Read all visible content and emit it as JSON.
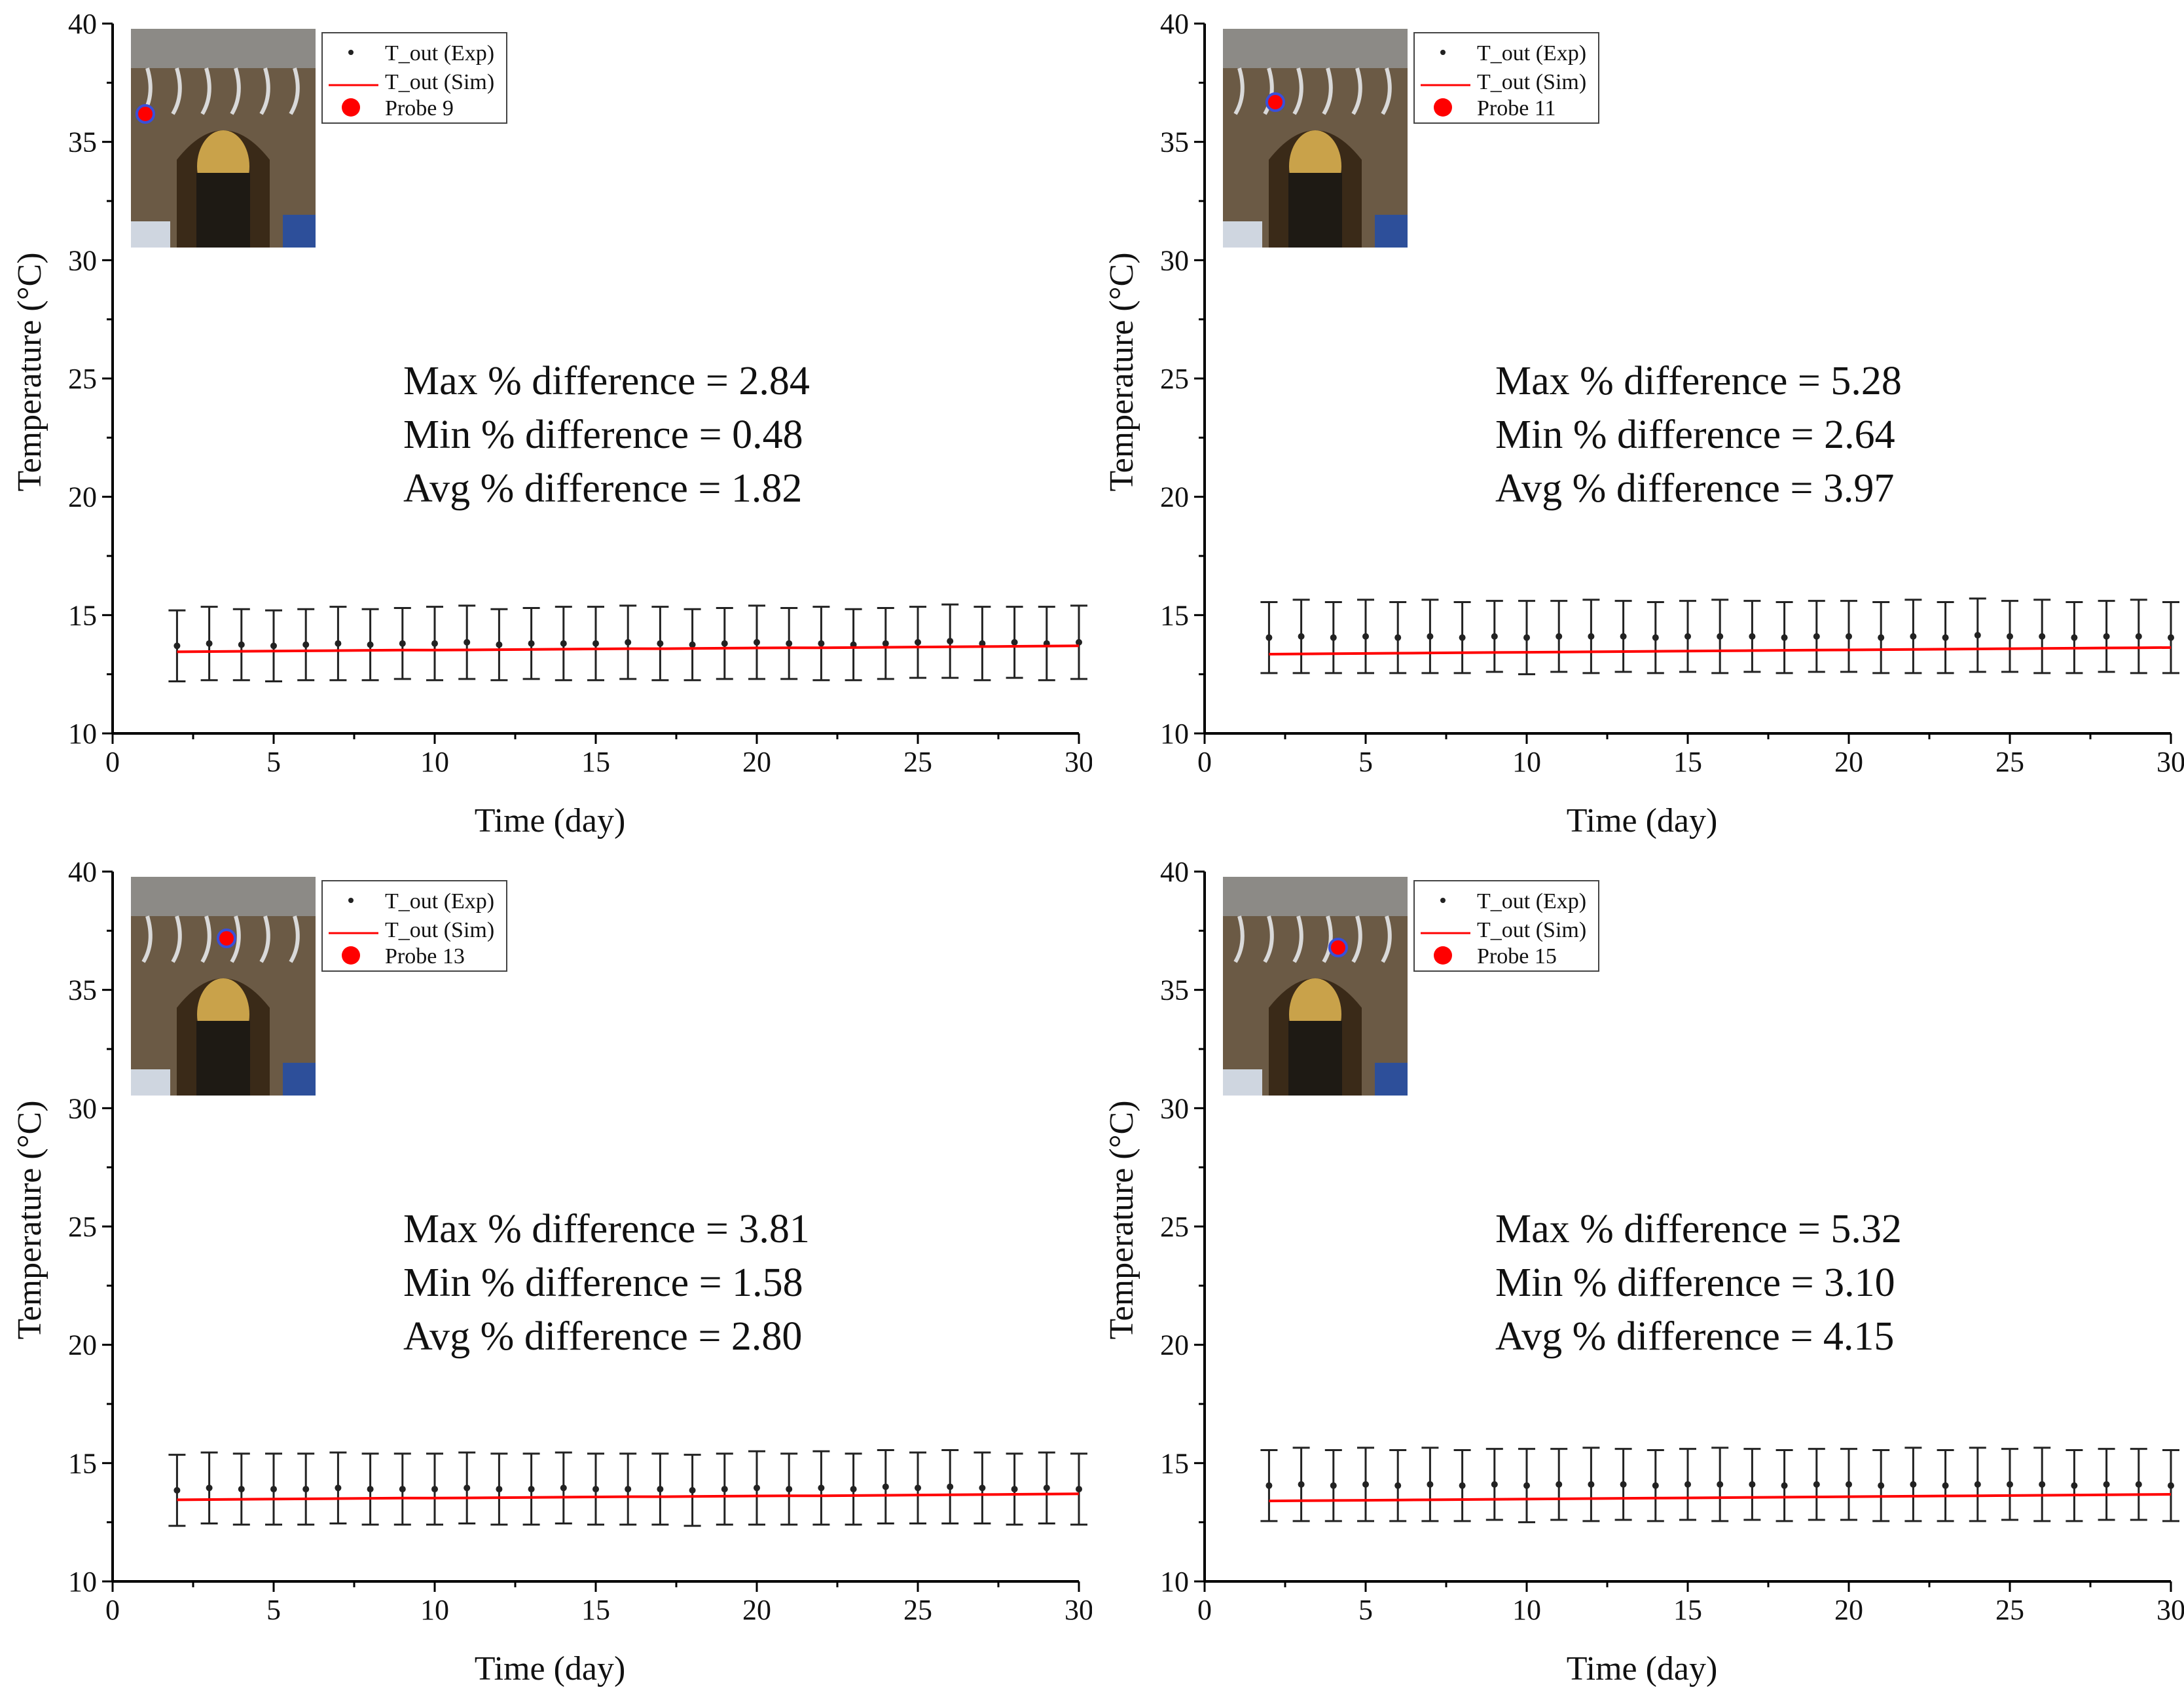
{
  "colors": {
    "exp": "#222222",
    "sim": "#ff0000",
    "axis": "#000000",
    "probe": "#ff0000",
    "probe_ring": "#3a4fd8"
  },
  "shared": {
    "xlabel": "Time (day)",
    "ylabel": "Temperature (°C)",
    "xlim": [
      0,
      30
    ],
    "ylim": [
      10,
      40
    ],
    "xticks": [
      "0",
      "5",
      "10",
      "15",
      "20",
      "25",
      "30"
    ],
    "yticks": [
      "10",
      "15",
      "20",
      "25",
      "30",
      "35",
      "40"
    ],
    "legend": {
      "exp": "T_out (Exp)",
      "sim": "T_out (Sim)"
    },
    "inset": "tunnel-photo"
  },
  "chart_data": [
    {
      "type": "line",
      "xlabel": "Time (day)",
      "ylabel": "Temperature (°C)",
      "xlim": [
        0,
        30
      ],
      "ylim": [
        10,
        40
      ],
      "grid": false,
      "legend_position": "top-left",
      "probe_label": "Probe 9",
      "stats": [
        "Max % difference = 2.84",
        "Min % difference = 0.48",
        "Avg % difference = 1.82"
      ],
      "x": [
        2,
        3,
        4,
        5,
        6,
        7,
        8,
        9,
        10,
        11,
        12,
        13,
        14,
        15,
        16,
        17,
        18,
        19,
        20,
        21,
        22,
        23,
        24,
        25,
        26,
        27,
        28,
        29,
        30
      ],
      "series": [
        {
          "name": "T_out (Exp)",
          "style": "points-with-errorbars",
          "values": [
            13.7,
            13.8,
            13.75,
            13.7,
            13.75,
            13.8,
            13.75,
            13.8,
            13.8,
            13.85,
            13.75,
            13.8,
            13.8,
            13.8,
            13.85,
            13.8,
            13.75,
            13.8,
            13.85,
            13.8,
            13.8,
            13.75,
            13.8,
            13.85,
            13.9,
            13.8,
            13.85,
            13.8,
            13.85
          ],
          "error": [
            1.5,
            1.55,
            1.5,
            1.5,
            1.5,
            1.55,
            1.5,
            1.5,
            1.55,
            1.55,
            1.5,
            1.5,
            1.55,
            1.55,
            1.55,
            1.55,
            1.5,
            1.5,
            1.55,
            1.5,
            1.55,
            1.5,
            1.5,
            1.5,
            1.55,
            1.55,
            1.5,
            1.55,
            1.55
          ]
        },
        {
          "name": "T_out (Sim)",
          "style": "line",
          "values": [
            13.45,
            13.46,
            13.47,
            13.48,
            13.49,
            13.5,
            13.51,
            13.52,
            13.52,
            13.53,
            13.54,
            13.55,
            13.56,
            13.57,
            13.58,
            13.58,
            13.59,
            13.6,
            13.61,
            13.62,
            13.62,
            13.63,
            13.64,
            13.65,
            13.66,
            13.67,
            13.68,
            13.69,
            13.7
          ]
        }
      ]
    },
    {
      "type": "line",
      "xlabel": "Time (day)",
      "ylabel": "Temperature (°C)",
      "xlim": [
        0,
        30
      ],
      "ylim": [
        10,
        40
      ],
      "grid": false,
      "legend_position": "top-left",
      "probe_label": "Probe 11",
      "stats": [
        "Max % difference = 5.28",
        "Min % difference = 2.64",
        "Avg % difference = 3.97"
      ],
      "x": [
        2,
        3,
        4,
        5,
        6,
        7,
        8,
        9,
        10,
        11,
        12,
        13,
        14,
        15,
        16,
        17,
        18,
        19,
        20,
        21,
        22,
        23,
        24,
        25,
        26,
        27,
        28,
        29,
        30
      ],
      "series": [
        {
          "name": "T_out (Exp)",
          "style": "points-with-errorbars",
          "values": [
            14.05,
            14.1,
            14.05,
            14.1,
            14.05,
            14.1,
            14.05,
            14.1,
            14.05,
            14.1,
            14.1,
            14.1,
            14.05,
            14.1,
            14.1,
            14.1,
            14.05,
            14.1,
            14.1,
            14.05,
            14.1,
            14.05,
            14.15,
            14.1,
            14.1,
            14.05,
            14.1,
            14.1,
            14.05
          ],
          "error": [
            1.5,
            1.55,
            1.5,
            1.55,
            1.5,
            1.55,
            1.5,
            1.5,
            1.55,
            1.5,
            1.55,
            1.5,
            1.5,
            1.5,
            1.55,
            1.5,
            1.5,
            1.5,
            1.5,
            1.5,
            1.55,
            1.5,
            1.55,
            1.5,
            1.55,
            1.5,
            1.5,
            1.55,
            1.5
          ]
        },
        {
          "name": "T_out (Sim)",
          "style": "line",
          "values": [
            13.35,
            13.36,
            13.37,
            13.38,
            13.39,
            13.4,
            13.41,
            13.42,
            13.43,
            13.44,
            13.45,
            13.46,
            13.47,
            13.48,
            13.49,
            13.5,
            13.51,
            13.52,
            13.53,
            13.54,
            13.55,
            13.56,
            13.57,
            13.58,
            13.59,
            13.6,
            13.61,
            13.62,
            13.63
          ]
        }
      ]
    },
    {
      "type": "line",
      "xlabel": "Time (day)",
      "ylabel": "Temperature (°C)",
      "xlim": [
        0,
        30
      ],
      "ylim": [
        10,
        40
      ],
      "grid": false,
      "legend_position": "top-left",
      "probe_label": "Probe 13",
      "stats": [
        "Max % difference = 3.81",
        "Min % difference = 1.58",
        "Avg % difference = 2.80"
      ],
      "x": [
        2,
        3,
        4,
        5,
        6,
        7,
        8,
        9,
        10,
        11,
        12,
        13,
        14,
        15,
        16,
        17,
        18,
        19,
        20,
        21,
        22,
        23,
        24,
        25,
        26,
        27,
        28,
        29,
        30
      ],
      "series": [
        {
          "name": "T_out (Exp)",
          "style": "points-with-errorbars",
          "values": [
            13.85,
            13.95,
            13.9,
            13.9,
            13.9,
            13.95,
            13.9,
            13.9,
            13.9,
            13.95,
            13.9,
            13.9,
            13.95,
            13.9,
            13.9,
            13.9,
            13.85,
            13.9,
            13.95,
            13.9,
            13.95,
            13.9,
            14.0,
            13.95,
            14.0,
            13.95,
            13.9,
            13.95,
            13.9
          ],
          "error": [
            1.5,
            1.5,
            1.5,
            1.5,
            1.5,
            1.5,
            1.5,
            1.5,
            1.5,
            1.5,
            1.5,
            1.5,
            1.5,
            1.5,
            1.5,
            1.5,
            1.5,
            1.5,
            1.55,
            1.5,
            1.55,
            1.5,
            1.55,
            1.5,
            1.55,
            1.5,
            1.5,
            1.5,
            1.5
          ]
        },
        {
          "name": "T_out (Sim)",
          "style": "line",
          "values": [
            13.45,
            13.46,
            13.47,
            13.48,
            13.49,
            13.5,
            13.51,
            13.52,
            13.52,
            13.53,
            13.54,
            13.55,
            13.56,
            13.57,
            13.58,
            13.58,
            13.59,
            13.6,
            13.61,
            13.62,
            13.62,
            13.63,
            13.64,
            13.65,
            13.66,
            13.67,
            13.68,
            13.69,
            13.7
          ]
        }
      ]
    },
    {
      "type": "line",
      "xlabel": "Time (day)",
      "ylabel": "Temperature (°C)",
      "xlim": [
        0,
        30
      ],
      "ylim": [
        10,
        40
      ],
      "grid": false,
      "legend_position": "top-left",
      "probe_label": "Probe 15",
      "stats": [
        "Max % difference = 5.32",
        "Min % difference = 3.10",
        "Avg % difference = 4.15"
      ],
      "x": [
        2,
        3,
        4,
        5,
        6,
        7,
        8,
        9,
        10,
        11,
        12,
        13,
        14,
        15,
        16,
        17,
        18,
        19,
        20,
        21,
        22,
        23,
        24,
        25,
        26,
        27,
        28,
        29,
        30
      ],
      "series": [
        {
          "name": "T_out (Exp)",
          "style": "points-with-errorbars",
          "values": [
            14.05,
            14.1,
            14.05,
            14.1,
            14.05,
            14.1,
            14.05,
            14.1,
            14.05,
            14.1,
            14.1,
            14.1,
            14.05,
            14.1,
            14.1,
            14.1,
            14.05,
            14.1,
            14.1,
            14.05,
            14.1,
            14.05,
            14.1,
            14.1,
            14.1,
            14.05,
            14.1,
            14.1,
            14.05
          ],
          "error": [
            1.5,
            1.55,
            1.5,
            1.55,
            1.5,
            1.55,
            1.5,
            1.5,
            1.55,
            1.5,
            1.55,
            1.5,
            1.5,
            1.5,
            1.55,
            1.5,
            1.5,
            1.5,
            1.5,
            1.5,
            1.55,
            1.5,
            1.55,
            1.5,
            1.55,
            1.5,
            1.5,
            1.5,
            1.5
          ]
        },
        {
          "name": "T_out (Sim)",
          "style": "line",
          "values": [
            13.4,
            13.41,
            13.42,
            13.43,
            13.44,
            13.45,
            13.46,
            13.47,
            13.48,
            13.49,
            13.5,
            13.51,
            13.52,
            13.53,
            13.54,
            13.55,
            13.56,
            13.57,
            13.58,
            13.59,
            13.6,
            13.61,
            13.62,
            13.63,
            13.64,
            13.65,
            13.66,
            13.67,
            13.68
          ]
        }
      ]
    }
  ]
}
